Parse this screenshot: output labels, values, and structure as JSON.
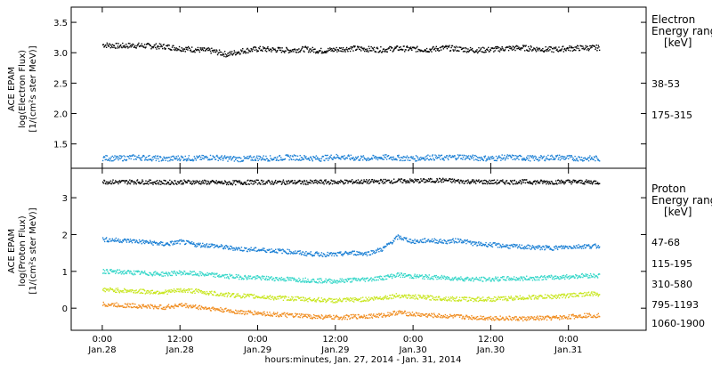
{
  "chart_data": [
    {
      "type": "scatter",
      "panel": "electron",
      "ylabel_lines": [
        "ACE EPAM",
        "log(Electron Flux)",
        "[1/(cm²s ster MeV)]"
      ],
      "ylim": [
        1.1,
        3.75
      ],
      "yticks": [
        1.5,
        2.0,
        2.5,
        3.0,
        3.5
      ],
      "ytick_labels": [
        "1.5",
        "2.0",
        "2.5",
        "3.0",
        "3.5"
      ],
      "legend_title_lines": [
        "Electron",
        "Energy ranges"
      ],
      "legend_unit": "[keV]",
      "series": [
        {
          "name": "38-53",
          "color": "#000000",
          "x": [
            0.0,
            0.1,
            0.2,
            0.3,
            0.4,
            0.5,
            0.6,
            0.7,
            0.8,
            0.9,
            1.0,
            1.1,
            1.2,
            1.3,
            1.4,
            1.5,
            1.6,
            1.7,
            1.8,
            1.9,
            2.0,
            2.1,
            2.2,
            2.3,
            2.4,
            2.5,
            2.6,
            2.7,
            2.8,
            2.9,
            3.0,
            3.1
          ],
          "y": [
            3.14,
            3.12,
            3.13,
            3.12,
            3.11,
            3.08,
            3.06,
            3.04,
            2.98,
            3.04,
            3.07,
            3.06,
            3.05,
            3.07,
            3.04,
            3.06,
            3.08,
            3.07,
            3.06,
            3.08,
            3.07,
            3.06,
            3.09,
            3.07,
            3.05,
            3.06,
            3.08,
            3.09,
            3.07,
            3.06,
            3.08,
            3.09
          ]
        },
        {
          "name": "175-315",
          "color": "#1a7fd4",
          "x": [
            0.0,
            0.1,
            0.2,
            0.3,
            0.4,
            0.5,
            0.6,
            0.7,
            0.8,
            0.9,
            1.0,
            1.1,
            1.2,
            1.3,
            1.4,
            1.5,
            1.6,
            1.7,
            1.8,
            1.9,
            2.0,
            2.1,
            2.2,
            2.3,
            2.4,
            2.5,
            2.6,
            2.7,
            2.8,
            2.9,
            3.0,
            3.1
          ],
          "y": [
            1.28,
            1.27,
            1.29,
            1.28,
            1.26,
            1.28,
            1.27,
            1.29,
            1.27,
            1.26,
            1.28,
            1.27,
            1.29,
            1.28,
            1.27,
            1.3,
            1.28,
            1.27,
            1.29,
            1.28,
            1.27,
            1.29,
            1.28,
            1.3,
            1.28,
            1.27,
            1.29,
            1.28,
            1.27,
            1.29,
            1.28,
            1.27
          ]
        }
      ]
    },
    {
      "type": "scatter",
      "panel": "proton",
      "ylabel_lines": [
        "ACE EPAM",
        "log(Proton Flux)",
        "[1/(cm²s ster MeV)]"
      ],
      "ylim": [
        -0.6,
        3.8
      ],
      "yticks": [
        0,
        1,
        2,
        3
      ],
      "ytick_labels": [
        "0",
        "1",
        "2",
        "3"
      ],
      "legend_title_lines": [
        "Proton",
        "Energy ranges"
      ],
      "legend_unit": "[keV]",
      "series": [
        {
          "name": "47-68",
          "color": "#000000",
          "x": [
            0.0,
            0.1,
            0.2,
            0.3,
            0.4,
            0.5,
            0.6,
            0.7,
            0.8,
            0.9,
            1.0,
            1.1,
            1.2,
            1.3,
            1.4,
            1.5,
            1.6,
            1.7,
            1.8,
            1.9,
            2.0,
            2.1,
            2.2,
            2.3,
            2.4,
            2.5,
            2.6,
            2.7,
            2.8,
            2.9,
            3.0,
            3.1
          ],
          "y": [
            3.45,
            3.44,
            3.45,
            3.44,
            3.43,
            3.44,
            3.44,
            3.43,
            3.42,
            3.43,
            3.44,
            3.43,
            3.44,
            3.43,
            3.44,
            3.44,
            3.45,
            3.45,
            3.46,
            3.47,
            3.47,
            3.48,
            3.49,
            3.46,
            3.45,
            3.44,
            3.44,
            3.45,
            3.44,
            3.44,
            3.45,
            3.44
          ]
        },
        {
          "name": "115-195",
          "color": "#1a7fd4",
          "x": [
            0.0,
            0.1,
            0.2,
            0.3,
            0.4,
            0.5,
            0.6,
            0.7,
            0.8,
            0.9,
            1.0,
            1.1,
            1.2,
            1.3,
            1.4,
            1.5,
            1.6,
            1.7,
            1.8,
            1.9,
            2.0,
            2.1,
            2.2,
            2.3,
            2.4,
            2.5,
            2.6,
            2.7,
            2.8,
            2.9,
            3.0,
            3.1
          ],
          "y": [
            1.88,
            1.86,
            1.84,
            1.8,
            1.75,
            1.82,
            1.74,
            1.72,
            1.66,
            1.62,
            1.6,
            1.58,
            1.55,
            1.5,
            1.48,
            1.47,
            1.52,
            1.5,
            1.62,
            1.95,
            1.82,
            1.86,
            1.82,
            1.86,
            1.76,
            1.74,
            1.7,
            1.68,
            1.66,
            1.65,
            1.68,
            1.7
          ]
        },
        {
          "name": "310-580",
          "color": "#33d6c8",
          "x": [
            0.0,
            0.1,
            0.2,
            0.3,
            0.4,
            0.5,
            0.6,
            0.7,
            0.8,
            0.9,
            1.0,
            1.1,
            1.2,
            1.3,
            1.4,
            1.5,
            1.6,
            1.7,
            1.8,
            1.9,
            2.0,
            2.1,
            2.2,
            2.3,
            2.4,
            2.5,
            2.6,
            2.7,
            2.8,
            2.9,
            3.0,
            3.1
          ],
          "y": [
            1.02,
            1.0,
            0.98,
            0.96,
            0.94,
            0.98,
            0.95,
            0.92,
            0.88,
            0.86,
            0.84,
            0.82,
            0.8,
            0.78,
            0.76,
            0.75,
            0.78,
            0.8,
            0.84,
            0.92,
            0.88,
            0.86,
            0.84,
            0.82,
            0.8,
            0.8,
            0.82,
            0.82,
            0.84,
            0.85,
            0.87,
            0.9
          ]
        },
        {
          "name": "795-1193",
          "color": "#c8e61e",
          "x": [
            0.0,
            0.1,
            0.2,
            0.3,
            0.4,
            0.5,
            0.6,
            0.7,
            0.8,
            0.9,
            1.0,
            1.1,
            1.2,
            1.3,
            1.4,
            1.5,
            1.6,
            1.7,
            1.8,
            1.9,
            2.0,
            2.1,
            2.2,
            2.3,
            2.4,
            2.5,
            2.6,
            2.7,
            2.8,
            2.9,
            3.0,
            3.1
          ],
          "y": [
            0.52,
            0.5,
            0.48,
            0.46,
            0.45,
            0.5,
            0.48,
            0.42,
            0.38,
            0.35,
            0.33,
            0.3,
            0.28,
            0.26,
            0.24,
            0.22,
            0.24,
            0.26,
            0.3,
            0.36,
            0.32,
            0.3,
            0.28,
            0.26,
            0.26,
            0.26,
            0.28,
            0.3,
            0.32,
            0.33,
            0.36,
            0.4
          ]
        },
        {
          "name": "1060-1900",
          "color": "#f08c1e",
          "x": [
            0.0,
            0.1,
            0.2,
            0.3,
            0.4,
            0.5,
            0.6,
            0.7,
            0.8,
            0.9,
            1.0,
            1.1,
            1.2,
            1.3,
            1.4,
            1.5,
            1.6,
            1.7,
            1.8,
            1.9,
            2.0,
            2.1,
            2.2,
            2.3,
            2.4,
            2.5,
            2.6,
            2.7,
            2.8,
            2.9,
            3.0,
            3.1
          ],
          "y": [
            0.12,
            0.1,
            0.08,
            0.06,
            0.04,
            0.1,
            0.05,
            0.0,
            -0.05,
            -0.1,
            -0.12,
            -0.15,
            -0.18,
            -0.2,
            -0.22,
            -0.24,
            -0.22,
            -0.2,
            -0.18,
            -0.1,
            -0.15,
            -0.18,
            -0.2,
            -0.22,
            -0.24,
            -0.25,
            -0.26,
            -0.27,
            -0.26,
            -0.25,
            -0.22,
            -0.18
          ]
        }
      ]
    }
  ],
  "x_axis": {
    "xlim": [
      -0.2,
      3.5
    ],
    "ticks": [
      0,
      0.5,
      1,
      1.5,
      2,
      2.5,
      3,
      3.5
    ],
    "tick_labels_time": [
      "0:00",
      "12:00",
      "0:00",
      "12:00",
      "0:00",
      "12:00",
      "0:00"
    ],
    "tick_labels_date": [
      "Jan.28",
      "Jan.28",
      "Jan.29",
      "Jan.29",
      "Jan.30",
      "Jan.30",
      "Jan.31"
    ],
    "label_ticks": [
      0,
      0.5,
      1,
      1.5,
      2,
      2.5,
      3
    ],
    "xlabel": "hours:minutes, Jan. 27, 2014 - Jan. 31, 2014"
  }
}
